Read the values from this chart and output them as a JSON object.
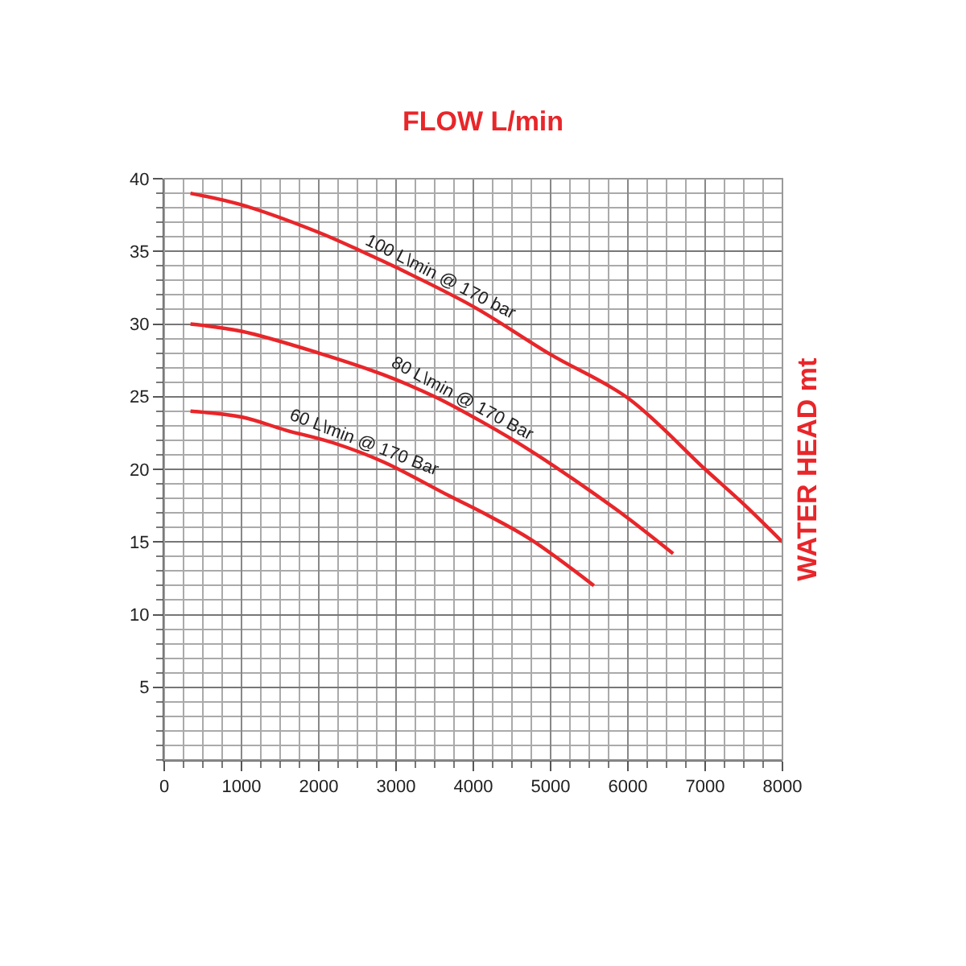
{
  "chart_data": {
    "type": "line",
    "title": "FLOW L/min",
    "ylabel": "WATER HEAD mt",
    "xlim": [
      0,
      8000
    ],
    "ylim": [
      0,
      40
    ],
    "xticks": [
      0,
      1000,
      2000,
      3000,
      4000,
      5000,
      6000,
      7000,
      8000
    ],
    "yticks": [
      5,
      10,
      15,
      20,
      25,
      30,
      35,
      40
    ],
    "grid": true,
    "legend": false,
    "marker": "none",
    "line_style": "solid",
    "series": [
      {
        "name": "100 L\\min @ 170 bar",
        "color": "#e8262a",
        "x": [
          340,
          1000,
          2000,
          2555,
          3000,
          4000,
          5000,
          6000,
          7000,
          7500,
          8000
        ],
        "values": [
          39,
          38.2,
          36.3,
          35,
          33.9,
          31.2,
          27.9,
          24.9,
          20,
          17.6,
          15
        ]
      },
      {
        "name": "80 L\\min @ 170 Bar",
        "color": "#e8262a",
        "x": [
          340,
          1000,
          2000,
          2840,
          3500,
          4100,
          4735,
          5300,
          5960,
          6585
        ],
        "values": [
          30,
          29.5,
          28,
          26.5,
          25,
          23.3,
          21.3,
          19.3,
          16.8,
          14.2
        ]
      },
      {
        "name": "60 L\\min @ 170 Bar",
        "color": "#e8262a",
        "x": [
          340,
          1000,
          1570,
          2200,
          2840,
          3680,
          4200,
          4735,
          5560
        ],
        "values": [
          24,
          23.6,
          22.7,
          21.8,
          20.5,
          18.2,
          16.8,
          15.2,
          12
        ]
      }
    ]
  }
}
